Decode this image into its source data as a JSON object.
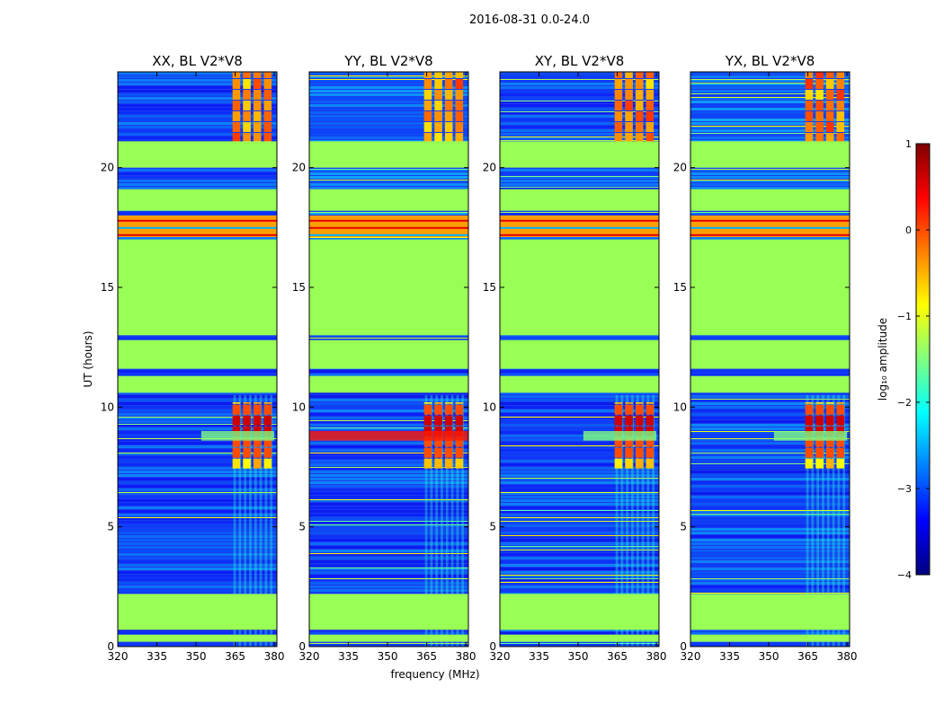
{
  "figure": {
    "suptitle": "2016-08-31 0.0-24.0",
    "xlabel": "frequency (MHz)",
    "ylabel": "UT (hours)"
  },
  "chart_data": [
    {
      "type": "heatmap",
      "title": "XX, BL V2*V8",
      "polarization": "XX",
      "baseline": "V2*V8",
      "xlabel": "frequency (MHz)",
      "ylabel": "UT (hours)",
      "xlim": [
        320,
        381
      ],
      "ylim": [
        0,
        24
      ],
      "xticks": [
        320,
        335,
        350,
        365,
        380
      ],
      "yticks": [
        0,
        5,
        10,
        15,
        20
      ],
      "flagged_bands_hours": [
        [
          0.2,
          0.5
        ],
        [
          0.7,
          2.2
        ],
        [
          10.6,
          11.3
        ],
        [
          11.6,
          12.8
        ],
        [
          13.0,
          17.0
        ],
        [
          18.2,
          19.1
        ],
        [
          20.0,
          21.1
        ]
      ],
      "rfi_bands_hours": [
        [
          17.1,
          18.0
        ]
      ],
      "strong_burst_hours": [
        [
          7.4,
          10.2
        ],
        [
          21.0,
          24.0
        ]
      ],
      "burst_freq_mhz": [
        364,
        380
      ],
      "burst_peak_hour": 8.8
    },
    {
      "type": "heatmap",
      "title": "YY, BL V2*V8",
      "polarization": "YY",
      "baseline": "V2*V8",
      "xlabel": "frequency (MHz)",
      "ylabel": "UT (hours)",
      "xlim": [
        320,
        381
      ],
      "ylim": [
        0,
        24
      ],
      "xticks": [
        320,
        335,
        350,
        365,
        380
      ],
      "yticks": [
        0,
        5,
        10,
        15,
        20
      ],
      "flagged_bands_hours": [
        [
          0.2,
          0.5
        ],
        [
          0.7,
          2.2
        ],
        [
          10.6,
          11.3
        ],
        [
          11.6,
          12.8
        ],
        [
          13.0,
          17.0
        ],
        [
          18.2,
          19.1
        ],
        [
          20.0,
          21.1
        ]
      ],
      "rfi_bands_hours": [
        [
          17.1,
          18.0
        ]
      ],
      "strong_burst_hours": [
        [
          7.4,
          10.2
        ],
        [
          21.0,
          24.0
        ]
      ],
      "burst_freq_mhz": [
        364,
        380
      ],
      "burst_peak_hour": 8.8
    },
    {
      "type": "heatmap",
      "title": "XY, BL V2*V8",
      "polarization": "XY",
      "baseline": "V2*V8",
      "xlabel": "frequency (MHz)",
      "ylabel": "UT (hours)",
      "xlim": [
        320,
        381
      ],
      "ylim": [
        0,
        24
      ],
      "xticks": [
        320,
        335,
        350,
        365,
        380
      ],
      "yticks": [
        0,
        5,
        10,
        15,
        20
      ],
      "flagged_bands_hours": [
        [
          0.2,
          0.5
        ],
        [
          0.7,
          2.2
        ],
        [
          10.6,
          11.3
        ],
        [
          11.6,
          12.8
        ],
        [
          13.0,
          17.0
        ],
        [
          18.2,
          19.1
        ],
        [
          20.0,
          21.1
        ]
      ],
      "rfi_bands_hours": [
        [
          17.1,
          18.0
        ]
      ],
      "strong_burst_hours": [
        [
          7.4,
          10.2
        ],
        [
          21.0,
          24.0
        ]
      ],
      "burst_freq_mhz": [
        364,
        380
      ],
      "burst_peak_hour": 8.8
    },
    {
      "type": "heatmap",
      "title": "YX, BL V2*V8",
      "polarization": "YX",
      "baseline": "V2*V8",
      "xlabel": "frequency (MHz)",
      "ylabel": "UT (hours)",
      "xlim": [
        320,
        381
      ],
      "ylim": [
        0,
        24
      ],
      "xticks": [
        320,
        335,
        350,
        365,
        380
      ],
      "yticks": [
        0,
        5,
        10,
        15,
        20
      ],
      "flagged_bands_hours": [
        [
          0.2,
          0.5
        ],
        [
          0.7,
          2.2
        ],
        [
          10.6,
          11.3
        ],
        [
          11.6,
          12.8
        ],
        [
          13.0,
          17.0
        ],
        [
          18.2,
          19.1
        ],
        [
          20.0,
          21.1
        ]
      ],
      "rfi_bands_hours": [
        [
          17.1,
          18.0
        ]
      ],
      "strong_burst_hours": [
        [
          7.4,
          10.2
        ],
        [
          21.0,
          24.0
        ]
      ],
      "burst_freq_mhz": [
        364,
        380
      ],
      "burst_peak_hour": 8.8
    }
  ],
  "colorbar": {
    "label": "log₁₀ amplitude",
    "colormap": "jet",
    "range": [
      -4,
      1
    ],
    "ticks": [
      "1",
      "0",
      "−1",
      "−2",
      "−3",
      "−4"
    ],
    "tick_values": [
      1,
      0,
      -1,
      -2,
      -3,
      -4
    ],
    "stops": [
      "#00007f",
      "#0000ff",
      "#007fff",
      "#00ffff",
      "#7fff7f",
      "#ffff00",
      "#ff7f00",
      "#ff0000",
      "#7f0000"
    ]
  },
  "colors": {
    "flagged": "#99ff55",
    "background_low": "#1a3cf0"
  }
}
